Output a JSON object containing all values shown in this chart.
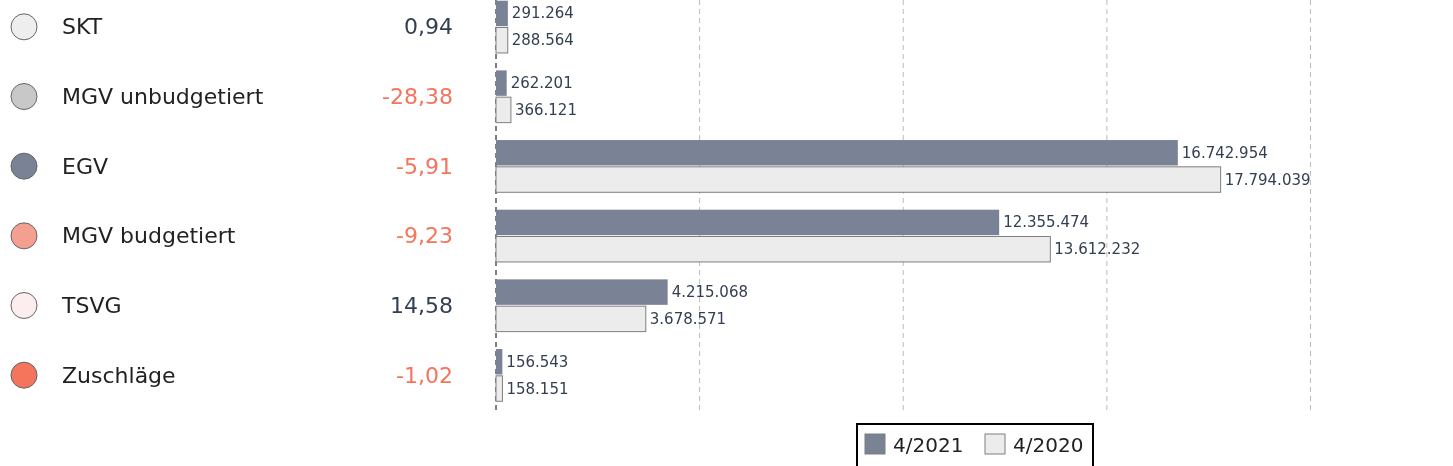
{
  "chart_data": {
    "type": "bar",
    "orientation": "horizontal",
    "categories": [
      "SKT",
      "MGV unbudgetiert",
      "EGV",
      "MGV budgetiert",
      "TSVG",
      "Zuschläge"
    ],
    "series": [
      {
        "name": "4/2021",
        "color": "#7a8296",
        "values": [
          291264,
          262201,
          16742954,
          12355474,
          4215068,
          156543
        ],
        "value_labels": [
          "291.264",
          "262.201",
          "16.742.954",
          "12.355.474",
          "4.215.068",
          "156.543"
        ]
      },
      {
        "name": "4/2020",
        "color": "#ececec",
        "values": [
          288564,
          366121,
          17794039,
          13612232,
          3678571,
          158151
        ],
        "value_labels": [
          "288.564",
          "366.121",
          "17.794.039",
          "13.612.232",
          "3.678.571",
          "158.151"
        ]
      }
    ],
    "xlim": [
      0,
      23500000
    ],
    "xticks": [
      {
        "value": 0,
        "label": null
      },
      {
        "value": 5000000,
        "label": null
      },
      {
        "value": 10000000,
        "label": null
      },
      {
        "value": 15000000,
        "label": null
      },
      {
        "value": 20000000,
        "label": null
      }
    ],
    "grid": "x",
    "legend": "bottom",
    "tick_labels": "y",
    "annotations": [
      "0,94",
      "-28,38",
      "-5,91",
      "-9,23",
      "14,58",
      "-1,02"
    ]
  }
}
